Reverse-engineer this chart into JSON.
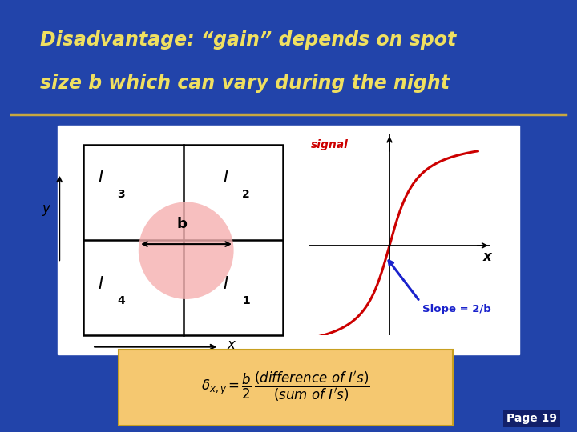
{
  "bg_color": "#2244aa",
  "title_line1": "Disadvantage: “gain” depends on spot",
  "title_line2": "size b which can vary during the night",
  "title_color": "#f0e060",
  "title_fontsize": 17,
  "divider_color": "#c8a840",
  "page_label": "Page 19",
  "formula_bg": "#f5c870"
}
